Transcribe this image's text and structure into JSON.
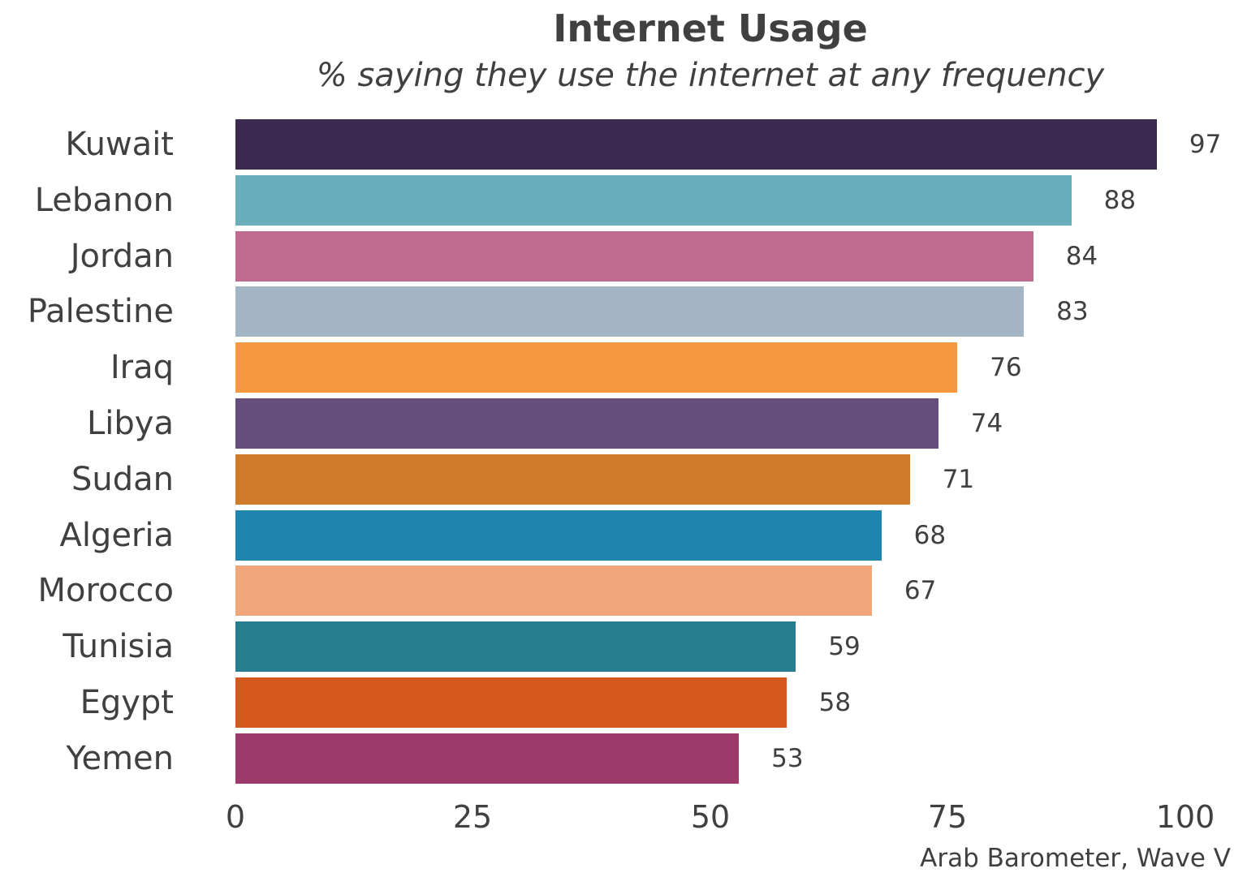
{
  "chart_data": {
    "type": "bar",
    "orientation": "horizontal",
    "title": "Internet Usage",
    "subtitle": "% saying they use the internet at any frequency",
    "xlabel": "",
    "ylabel": "",
    "xlim": [
      0,
      100
    ],
    "xticks": [
      "0",
      "25",
      "50",
      "75",
      "100"
    ],
    "grid": false,
    "legend": null,
    "source": "Arab Barometer, Wave V",
    "categories": [
      "Kuwait",
      "Lebanon",
      "Jordan",
      "Palestine",
      "Iraq",
      "Libya",
      "Sudan",
      "Algeria",
      "Morocco",
      "Tunisia",
      "Egypt",
      "Yemen"
    ],
    "values": [
      97,
      88,
      84,
      83,
      76,
      74,
      71,
      68,
      67,
      59,
      58,
      53
    ],
    "colors": [
      "#3b294f",
      "#6aaebb",
      "#c06c90",
      "#a3b5c4",
      "#f69840",
      "#664e7c",
      "#d07a2b",
      "#1f85ae",
      "#f2a67c",
      "#257d8d",
      "#d5581c",
      "#9b3a6b"
    ]
  },
  "header": {
    "title": "Internet Usage",
    "subtitle": "% saying they use the internet at any frequency"
  },
  "axis": {
    "ticks": [
      "0",
      "25",
      "50",
      "75",
      "100"
    ]
  },
  "footer": {
    "source": "Arab Barometer, Wave V"
  }
}
